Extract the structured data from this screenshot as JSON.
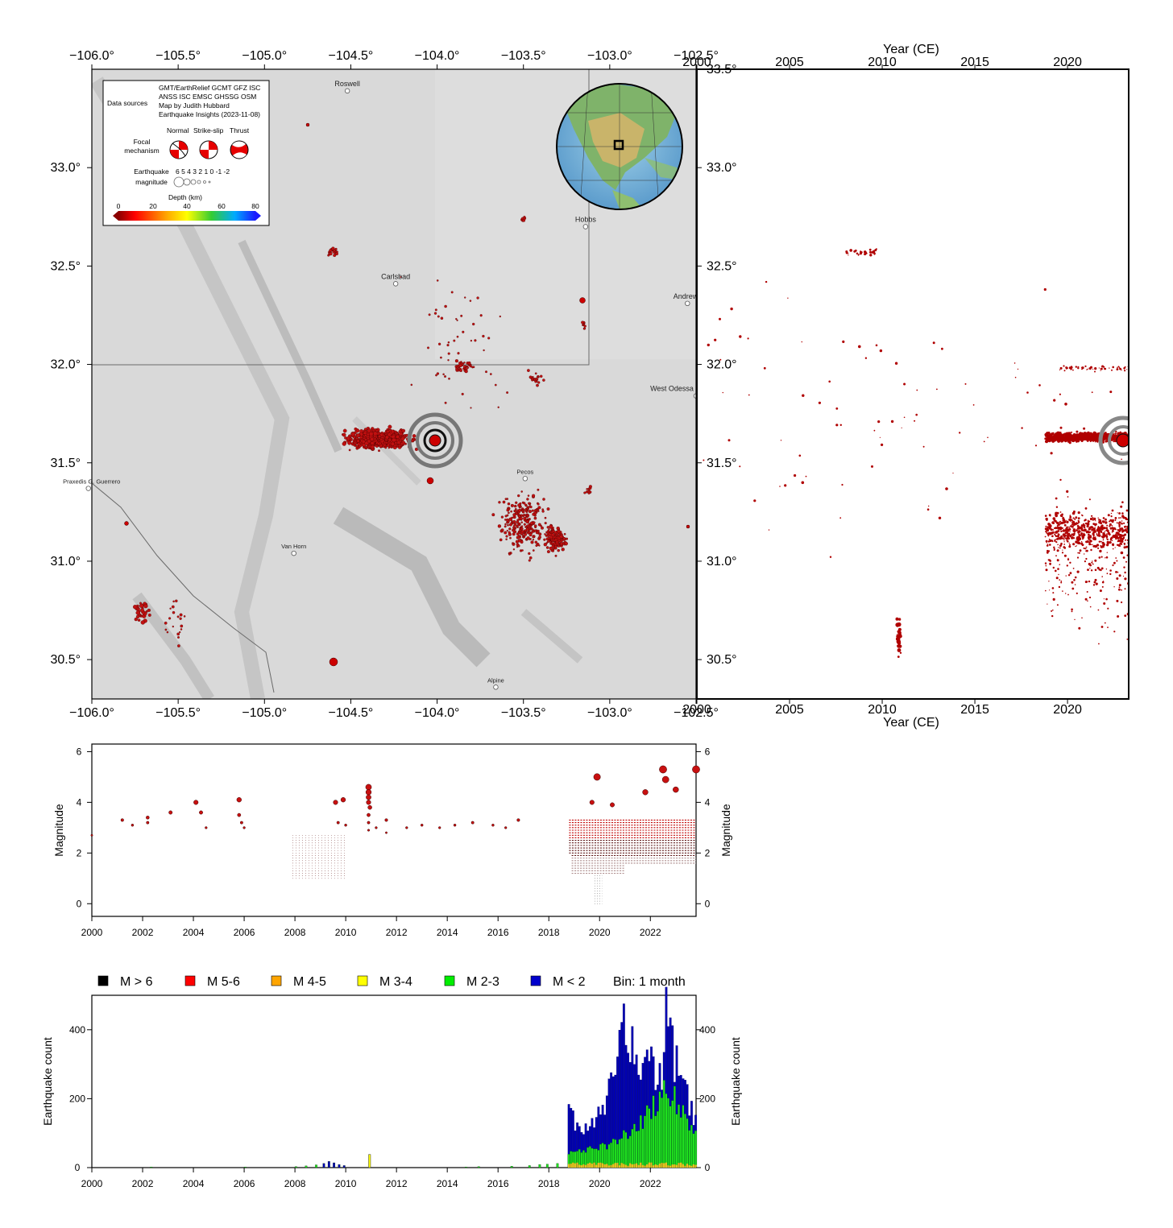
{
  "map": {
    "lon_ticks": [
      "−106.0°",
      "−105.5°",
      "−105.0°",
      "−104.5°",
      "−104.0°",
      "−103.5°",
      "−103.0°",
      "−102.5°"
    ],
    "lat_ticks": [
      "33.0°",
      "32.5°",
      "32.0°",
      "31.5°",
      "31.0°",
      "30.5°"
    ],
    "extent": {
      "lon": [
        -106.0,
        -102.5
      ],
      "lat": [
        30.3,
        33.5
      ]
    },
    "places": [
      {
        "name": "Roswell",
        "lon": -104.52,
        "lat": 33.39
      },
      {
        "name": "Hobbs",
        "lon": -103.14,
        "lat": 32.7
      },
      {
        "name": "Carlsbad",
        "lon": -104.24,
        "lat": 32.41
      },
      {
        "name": "Andrews",
        "lon": -102.55,
        "lat": 32.31
      },
      {
        "name": "West Odessa",
        "lon": -102.5,
        "lat": 31.84
      },
      {
        "name": "Pecos",
        "lon": -103.49,
        "lat": 31.42
      },
      {
        "name": "Praxedis G. Guerrero",
        "lon": -106.02,
        "lat": 31.37
      },
      {
        "name": "Van Horn",
        "lon": -104.83,
        "lat": 31.04
      },
      {
        "name": "Alpine",
        "lon": -103.66,
        "lat": 30.36
      }
    ],
    "legend": {
      "data_sources_label": "Data sources",
      "sources_lines": [
        "GMT/EarthRelief GCMT GFZ ISC",
        "ANSS ISC EMSC GHSSG OSM",
        "Map by Judith Hubbard",
        "Earthquake Insights (2023-11-08)"
      ],
      "mech_label_1": "Focal",
      "mech_label_2": "mechanism",
      "mech_types": [
        "Normal",
        "Strike-slip",
        "Thrust"
      ],
      "mag_label_1": "Earthquake",
      "mag_label_2": "magnitude",
      "mag_values": "6  5  4  3  2  1  0 -1 -2",
      "depth_title": "Depth (km)",
      "depth_ticks": [
        "0",
        "20",
        "40",
        "60",
        "80"
      ],
      "depth_colors": [
        "#8b0000",
        "#ff0000",
        "#ffa500",
        "#ffff00",
        "#33cc33",
        "#00aaff",
        "#1a1aff"
      ]
    }
  },
  "time_lat": {
    "xlabel": "Year (CE)",
    "x_ticks": [
      "2000",
      "2005",
      "2010",
      "2015",
      "2020"
    ],
    "lat_ticks": [
      "33.5°",
      "33.0°",
      "32.5°",
      "32.0°",
      "31.5°",
      "31.0°",
      "30.5°"
    ]
  },
  "chart_data": [
    {
      "type": "scatter",
      "title": "",
      "xlabel": "",
      "ylabel": "Magnitude",
      "xlim": [
        2000,
        2023.8
      ],
      "ylim": [
        -0.5,
        6.3
      ],
      "x_ticks": [
        "2000",
        "2002",
        "2004",
        "2006",
        "2008",
        "2010",
        "2012",
        "2014",
        "2016",
        "2018",
        "2020",
        "2022"
      ],
      "y_ticks": [
        "0",
        "2",
        "4",
        "6"
      ],
      "points": [
        [
          2000.0,
          2.7
        ],
        [
          2001.2,
          3.3
        ],
        [
          2001.6,
          3.1
        ],
        [
          2002.2,
          3.4
        ],
        [
          2002.2,
          3.2
        ],
        [
          2003.1,
          3.6
        ],
        [
          2004.1,
          4.0
        ],
        [
          2004.3,
          3.6
        ],
        [
          2004.5,
          3.0
        ],
        [
          2005.8,
          4.1
        ],
        [
          2005.8,
          3.5
        ],
        [
          2005.9,
          3.2
        ],
        [
          2006.0,
          3.0
        ],
        [
          2009.6,
          4.0
        ],
        [
          2009.9,
          4.1
        ],
        [
          2009.7,
          3.2
        ],
        [
          2010.0,
          3.1
        ],
        [
          2010.9,
          4.6
        ],
        [
          2010.9,
          4.4
        ],
        [
          2010.9,
          4.2
        ],
        [
          2010.9,
          4.0
        ],
        [
          2010.95,
          3.8
        ],
        [
          2010.9,
          3.5
        ],
        [
          2010.9,
          3.2
        ],
        [
          2010.9,
          2.9
        ],
        [
          2011.2,
          3.0
        ],
        [
          2011.6,
          3.3
        ],
        [
          2011.6,
          2.8
        ],
        [
          2012.4,
          3.0
        ],
        [
          2013.0,
          3.1
        ],
        [
          2013.7,
          3.0
        ],
        [
          2014.3,
          3.1
        ],
        [
          2015.0,
          3.2
        ],
        [
          2015.8,
          3.1
        ],
        [
          2016.3,
          3.0
        ],
        [
          2016.8,
          3.3
        ],
        [
          2019.9,
          5.0
        ],
        [
          2019.7,
          4.0
        ],
        [
          2020.5,
          3.9
        ],
        [
          2021.8,
          4.4
        ],
        [
          2022.5,
          5.3
        ],
        [
          2022.6,
          4.9
        ],
        [
          2023.0,
          4.5
        ],
        [
          2023.8,
          5.3
        ]
      ]
    },
    {
      "type": "bar",
      "title": "",
      "xlabel": "",
      "ylabel": "Earthquake count",
      "xlim": [
        2000,
        2023.8
      ],
      "ylim": [
        0,
        500
      ],
      "bin": "1 month",
      "x_ticks": [
        "2000",
        "2002",
        "2004",
        "2006",
        "2008",
        "2010",
        "2012",
        "2014",
        "2016",
        "2018",
        "2020",
        "2022"
      ],
      "y_ticks": [
        "0",
        "200",
        "400"
      ],
      "legend": [
        {
          "label": "M > 6",
          "color": "#000000"
        },
        {
          "label": "M 5-6",
          "color": "#ff0000"
        },
        {
          "label": "M 4-5",
          "color": "#ffa500"
        },
        {
          "label": "M 3-4",
          "color": "#ffff00"
        },
        {
          "label": "M 2-3",
          "color": "#00ee00"
        },
        {
          "label": "M < 2",
          "color": "#0000cc"
        }
      ],
      "bin_label": "Bin: 1 month",
      "series": [
        {
          "name": "M < 2",
          "x": [
            2018.75,
            2019.0,
            2019.5,
            2020.0,
            2020.4,
            2020.7,
            2020.9,
            2021.1,
            2021.5,
            2022.0,
            2022.4,
            2022.6,
            2022.9,
            2023.3,
            2023.7
          ],
          "values": [
            220,
            125,
            130,
            160,
            260,
            390,
            420,
            380,
            290,
            300,
            250,
            460,
            330,
            230,
            140
          ]
        },
        {
          "name": "M 2-3",
          "x": [
            2018.75,
            2019.0,
            2019.5,
            2020.0,
            2020.4,
            2020.7,
            2020.9,
            2021.1,
            2021.5,
            2022.0,
            2022.4,
            2022.6,
            2022.9,
            2023.3,
            2023.7
          ],
          "values": [
            40,
            50,
            55,
            60,
            70,
            80,
            90,
            95,
            120,
            170,
            200,
            230,
            200,
            150,
            110
          ]
        },
        {
          "name": "M 3-4",
          "x": [
            2010.9
          ],
          "values": [
            38
          ]
        }
      ]
    }
  ]
}
